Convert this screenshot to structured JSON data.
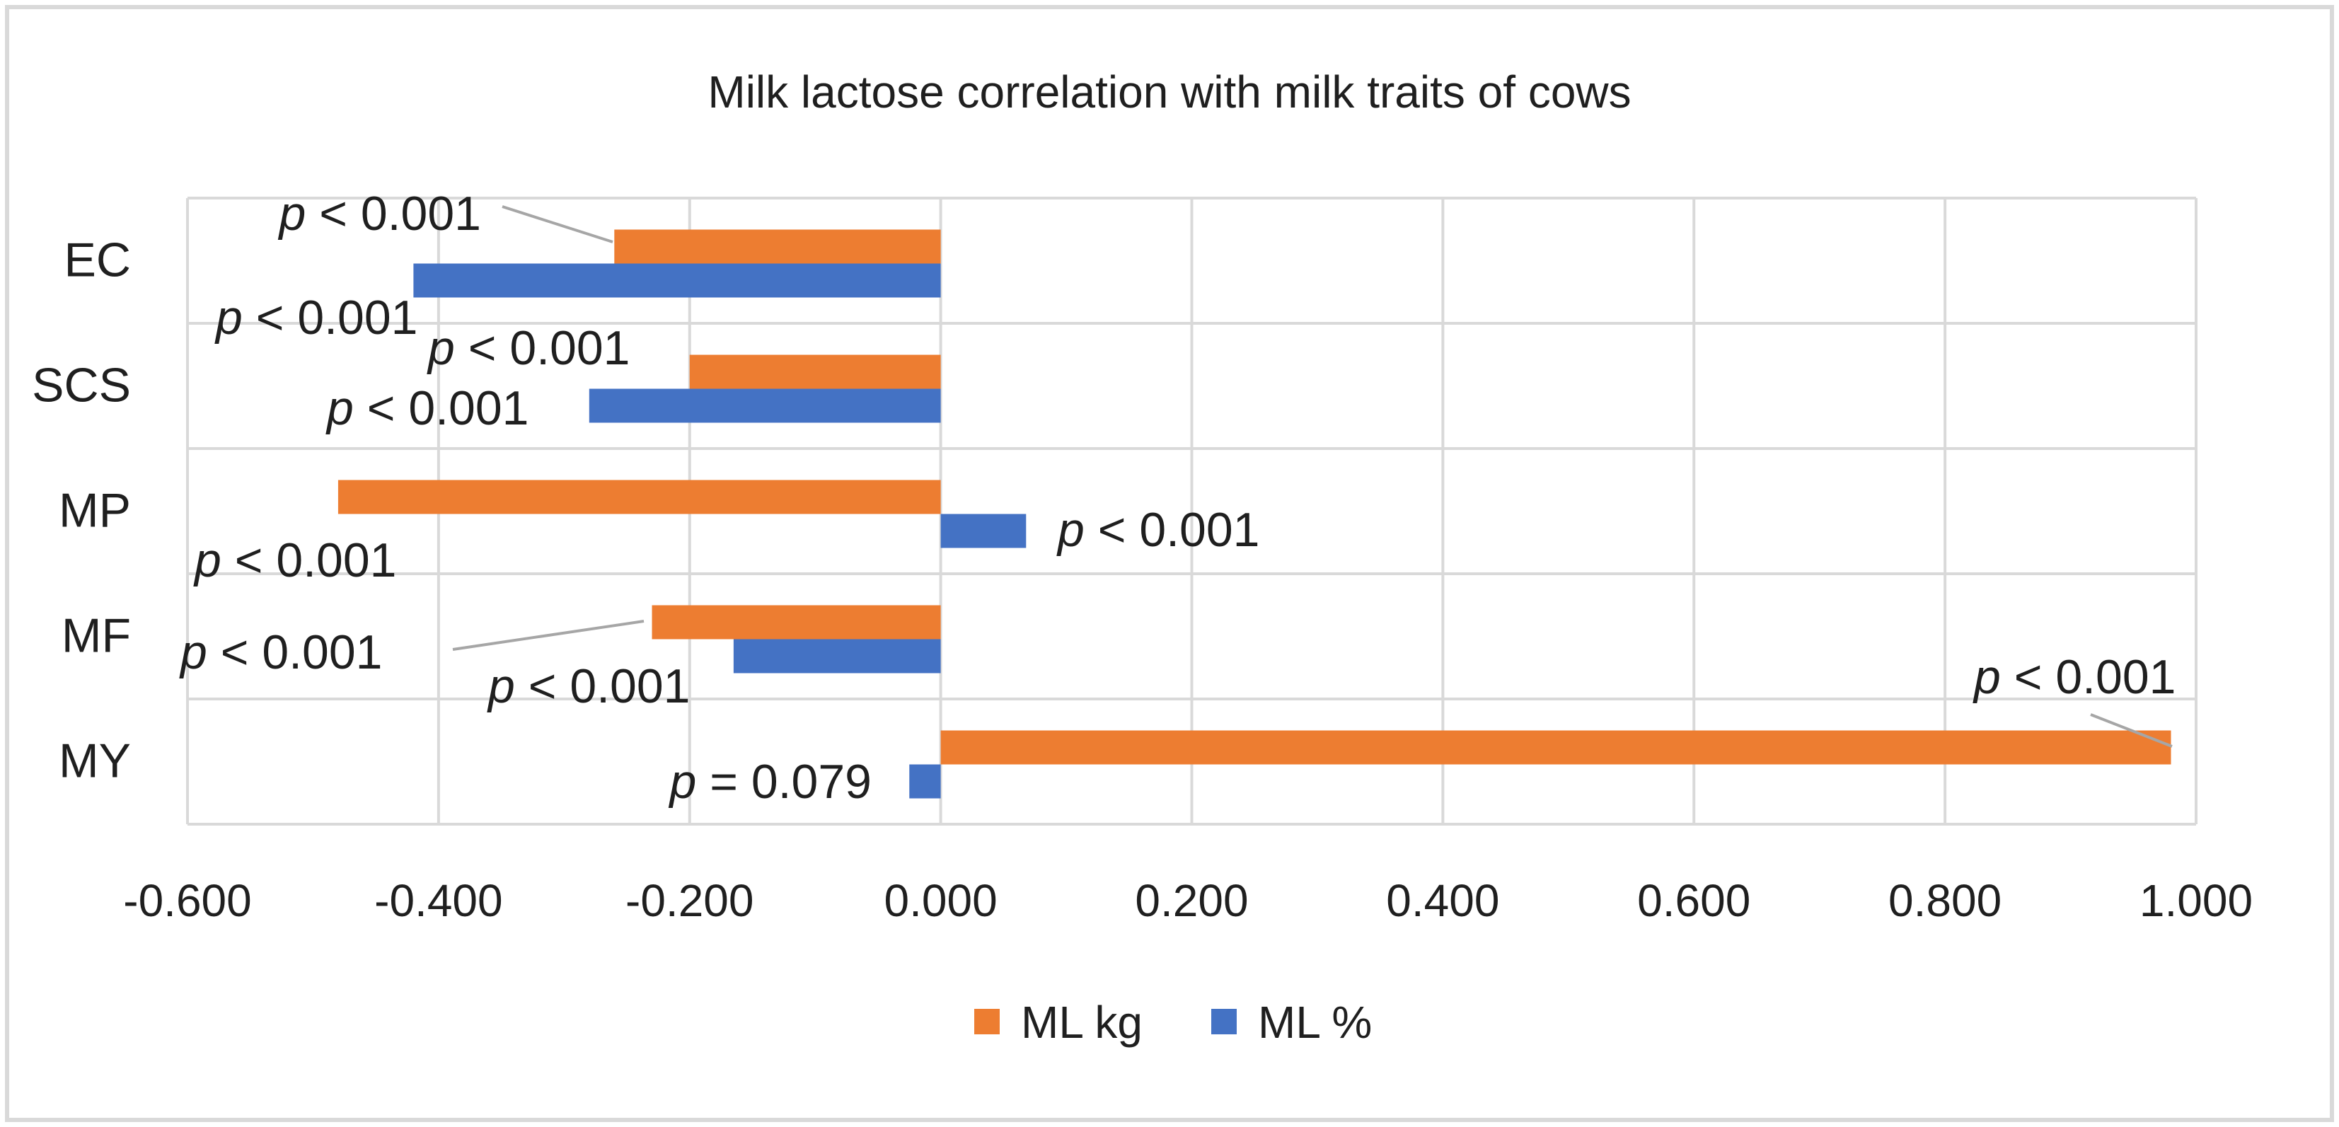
{
  "chart_data": {
    "type": "bar",
    "orientation": "horizontal",
    "title": "Milk lactose correlation with milk traits of cows",
    "categories": [
      "EC",
      "SCS",
      "MP",
      "MF",
      "MY"
    ],
    "series": [
      {
        "name": "ML kg",
        "color": "#ED7D31",
        "values": [
          -0.26,
          -0.2,
          -0.48,
          -0.23,
          0.98
        ],
        "labels": [
          "p < 0.001",
          "p < 0.001",
          "p < 0.001",
          "p < 0.001",
          "p < 0.001"
        ]
      },
      {
        "name": "ML %",
        "color": "#4472C4",
        "values": [
          -0.42,
          -0.28,
          0.068,
          -0.165,
          -0.025
        ],
        "labels": [
          "p < 0.001",
          "p < 0.001",
          "p < 0.001",
          "p < 0.001",
          "p =  0.079"
        ]
      }
    ],
    "xlim": [
      -0.6,
      1.0
    ],
    "xticks": [
      "-0.600",
      "-0.400",
      "-0.200",
      "0.000",
      "0.200",
      "0.400",
      "0.600",
      "0.800",
      "1.000"
    ],
    "grid": true,
    "legend_position": "bottom"
  }
}
